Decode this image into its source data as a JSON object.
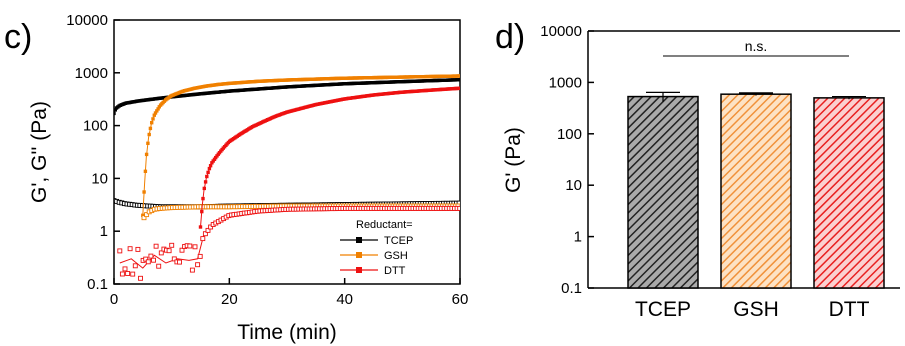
{
  "chart_data": [
    {
      "panel_label": "c)",
      "type": "scatter",
      "xlabel": "Time (min)",
      "ylabel": "G', G'' (Pa)",
      "xlim": [
        0,
        60
      ],
      "ylim": [
        0.1,
        10000
      ],
      "yscale": "log",
      "xticks": [
        "0",
        "20",
        "40",
        "60"
      ],
      "yticks": [
        "0.1",
        "1",
        "10",
        "100",
        "1000",
        "10000"
      ],
      "legend": {
        "title": "Reductant=",
        "placement": "bottom-right",
        "entries": [
          {
            "name": "TCEP",
            "color": "#000000"
          },
          {
            "name": "GSH",
            "color": "#f08000"
          },
          {
            "name": "DTT",
            "color": "#ee1111"
          }
        ]
      },
      "series": [
        {
          "name": "TCEP",
          "modulus": "G'",
          "marker": "filled-square",
          "color": "#000000",
          "x": [
            0,
            0.3,
            1,
            2,
            4,
            6,
            8,
            10,
            15,
            20,
            30,
            40,
            50,
            60
          ],
          "y": [
            170,
            210,
            240,
            265,
            290,
            310,
            330,
            350,
            400,
            450,
            540,
            620,
            680,
            740
          ]
        },
        {
          "name": "TCEP",
          "modulus": "G''",
          "marker": "open-square",
          "color": "#000000",
          "x": [
            0,
            1,
            2,
            4,
            6,
            8,
            10,
            15,
            20,
            30,
            40,
            50,
            60
          ],
          "y": [
            3.8,
            3.5,
            3.3,
            3.1,
            3.0,
            2.9,
            2.9,
            2.9,
            3.0,
            3.1,
            3.2,
            3.3,
            3.4
          ]
        },
        {
          "name": "GSH",
          "modulus": "G'",
          "marker": "filled-square",
          "color": "#f08000",
          "x": [
            5.0,
            5.3,
            5.6,
            6,
            6.5,
            7,
            8,
            9,
            10,
            12,
            14,
            16,
            18,
            20,
            25,
            30,
            40,
            50,
            60
          ],
          "y": [
            2,
            8,
            25,
            60,
            110,
            160,
            240,
            310,
            370,
            450,
            510,
            560,
            600,
            630,
            690,
            730,
            790,
            830,
            870
          ]
        },
        {
          "name": "GSH",
          "modulus": "G''",
          "marker": "open-square",
          "color": "#f08000",
          "x": [
            5.2,
            6,
            7,
            8,
            10,
            15,
            20,
            30,
            40,
            50,
            60
          ],
          "y": [
            1.8,
            2.3,
            2.6,
            2.7,
            2.8,
            2.9,
            2.9,
            3.0,
            3.0,
            3.0,
            3.0
          ]
        },
        {
          "name": "DTT",
          "modulus": "G'",
          "marker": "filled-square",
          "color": "#ee1111",
          "x": [
            15.0,
            15.3,
            15.6,
            16,
            16.5,
            17,
            18,
            19,
            20,
            22,
            24,
            26,
            28,
            30,
            35,
            40,
            45,
            50,
            55,
            60
          ],
          "y": [
            1.2,
            3,
            6,
            10,
            15,
            20,
            28,
            38,
            50,
            70,
            95,
            120,
            150,
            180,
            250,
            320,
            380,
            430,
            470,
            510
          ]
        },
        {
          "name": "DTT",
          "modulus": "G''",
          "marker": "open-square",
          "color": "#ee1111",
          "x": [
            1,
            3,
            5,
            7,
            9,
            11,
            13,
            14.5,
            15.5,
            17,
            20,
            25,
            30,
            40,
            50,
            60
          ],
          "y": [
            0.25,
            0.3,
            0.2,
            0.35,
            0.25,
            0.3,
            0.28,
            0.3,
            0.8,
            1.3,
            2.0,
            2.4,
            2.6,
            2.7,
            2.7,
            2.7
          ]
        }
      ]
    },
    {
      "panel_label": "d)",
      "type": "bar",
      "ylabel": "G' (Pa)",
      "xlabel": "",
      "yscale": "log",
      "ylim": [
        0.1,
        10000
      ],
      "yticks": [
        "0.1",
        "1",
        "10",
        "100",
        "1000",
        "10000"
      ],
      "categories": [
        "TCEP",
        "GSH",
        "DTT"
      ],
      "values": [
        530,
        590,
        500
      ],
      "errors": [
        110,
        35,
        30
      ],
      "colors": [
        "#333333",
        "#f5a85a",
        "#ee2222"
      ],
      "hatch": "diagonal",
      "annotation": "n.s."
    }
  ]
}
